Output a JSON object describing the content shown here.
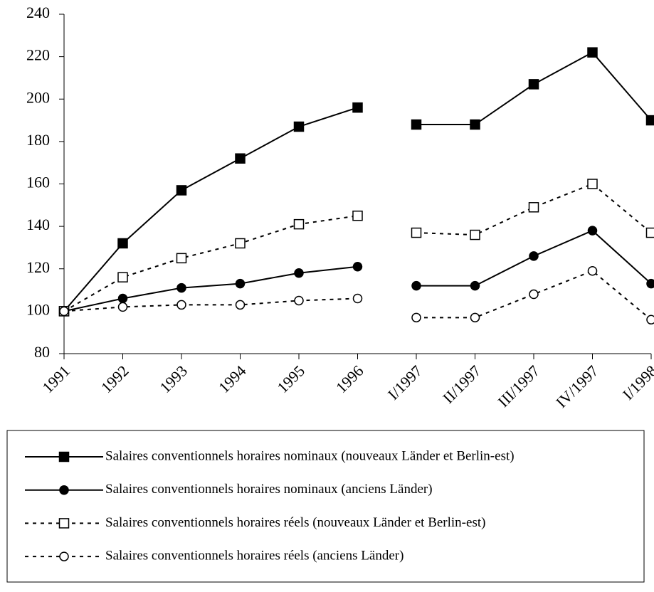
{
  "chart_data": {
    "type": "line",
    "categories": [
      "1991",
      "1992",
      "1993",
      "1994",
      "1995",
      "1996",
      "I/1997",
      "II/1997",
      "III/1997",
      "IV/1997",
      "I/1998"
    ],
    "breaks": [
      6
    ],
    "series": [
      {
        "name": "Salaires conventionnels horaires nominaux (nouveaux Länder et Berlin-est)",
        "color": "#000000",
        "marker": "square",
        "filled": true,
        "dashed": false,
        "values": [
          100,
          132,
          157,
          172,
          187,
          196,
          188,
          188,
          207,
          222,
          190
        ]
      },
      {
        "name": "Salaires conventionnels horaires nominaux (anciens Länder)",
        "color": "#000000",
        "marker": "circle",
        "filled": true,
        "dashed": false,
        "values": [
          100,
          106,
          111,
          113,
          118,
          121,
          112,
          112,
          126,
          138,
          113
        ]
      },
      {
        "name": "Salaires conventionnels horaires réels (nouveaux Länder et Berlin-est)",
        "color": "#000000",
        "marker": "square",
        "filled": false,
        "dashed": true,
        "values": [
          100,
          116,
          125,
          132,
          141,
          145,
          137,
          136,
          149,
          160,
          137
        ]
      },
      {
        "name": "Salaires conventionnels horaires réels (anciens Länder)",
        "color": "#000000",
        "marker": "circle",
        "filled": false,
        "dashed": true,
        "values": [
          100,
          102,
          103,
          103,
          105,
          106,
          97,
          97,
          108,
          119,
          96
        ]
      }
    ],
    "ylim": [
      80,
      240
    ],
    "yticks": [
      80,
      100,
      120,
      140,
      160,
      180,
      200,
      220,
      240
    ],
    "grid": false
  }
}
